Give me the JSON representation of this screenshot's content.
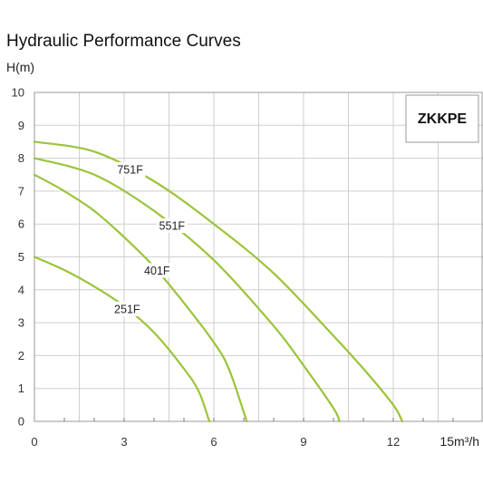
{
  "chart_data": {
    "type": "line",
    "title": "Hydraulic Performance Curves",
    "ylabel": "H(m)",
    "xlabel": "15m³/h",
    "xlim": [
      0,
      15
    ],
    "ylim": [
      0,
      10
    ],
    "xticks": [
      0,
      3,
      6,
      9,
      12
    ],
    "xtick_labels": [
      "0",
      "3",
      "6",
      "9",
      "12"
    ],
    "yticks": [
      0,
      1,
      2,
      3,
      4,
      5,
      6,
      7,
      8,
      9,
      10
    ],
    "grid": true,
    "brand": "ZKKPE",
    "curve_color": "#9bc43b",
    "series": [
      {
        "name": "751F",
        "x": [
          0,
          2,
          4,
          6,
          8,
          10,
          11,
          12,
          12.3
        ],
        "y": [
          8.5,
          8.2,
          7.3,
          6.0,
          4.5,
          2.6,
          1.6,
          0.5,
          0
        ]
      },
      {
        "name": "551F",
        "x": [
          0,
          2,
          4,
          6,
          8,
          9,
          10,
          10.2
        ],
        "y": [
          8.0,
          7.5,
          6.4,
          4.9,
          2.9,
          1.7,
          0.4,
          0
        ]
      },
      {
        "name": "401F",
        "x": [
          0,
          1,
          2,
          3,
          4,
          5,
          6,
          6.5,
          7.1
        ],
        "y": [
          7.5,
          7.0,
          6.4,
          5.6,
          4.7,
          3.6,
          2.4,
          1.6,
          0
        ]
      },
      {
        "name": "251F",
        "x": [
          0,
          1,
          2,
          3,
          4,
          5,
          5.5,
          5.85
        ],
        "y": [
          5.0,
          4.6,
          4.1,
          3.5,
          2.7,
          1.6,
          0.9,
          0
        ]
      }
    ]
  }
}
